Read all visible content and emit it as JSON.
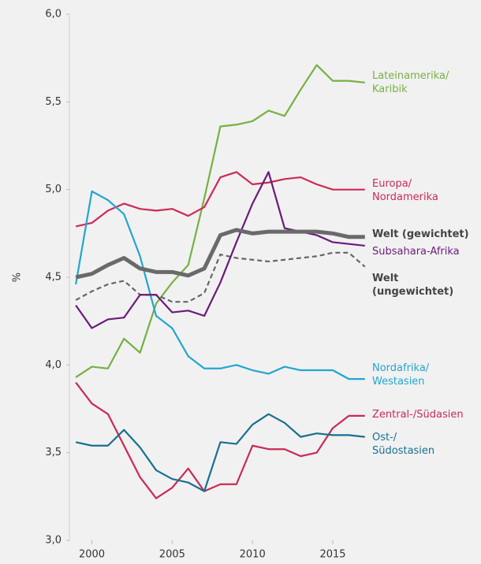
{
  "chart_data": {
    "type": "line",
    "y_label": "%",
    "x": [
      1999,
      2000,
      2001,
      2002,
      2003,
      2004,
      2005,
      2006,
      2007,
      2008,
      2009,
      2010,
      2011,
      2012,
      2013,
      2014,
      2015,
      2016,
      2017
    ],
    "xlim": [
      1998.6,
      2017.6
    ],
    "xticks": [
      2000,
      2005,
      2010,
      2015
    ],
    "ylim": [
      3.0,
      6.0
    ],
    "yticks": [
      {
        "value": 3.0,
        "label": "3,0"
      },
      {
        "value": 3.5,
        "label": "3,5"
      },
      {
        "value": 4.0,
        "label": "4,0"
      },
      {
        "value": 4.5,
        "label": "4,5"
      },
      {
        "value": 5.0,
        "label": "5,0"
      },
      {
        "value": 5.5,
        "label": "5,5"
      },
      {
        "value": 6.0,
        "label": "6,0"
      }
    ],
    "series": [
      {
        "name": "Lateinamerika/\nKaribik",
        "color": "#76b043",
        "values": [
          3.93,
          3.99,
          3.98,
          4.15,
          4.07,
          4.35,
          4.47,
          4.57,
          4.95,
          5.36,
          5.37,
          5.39,
          5.45,
          5.42,
          5.57,
          5.71,
          5.62,
          5.62,
          5.61
        ]
      },
      {
        "name": "Europa/\nNordamerika",
        "color": "#cc2a55",
        "values": [
          4.79,
          4.81,
          4.88,
          4.92,
          4.89,
          4.88,
          4.89,
          4.85,
          4.9,
          5.07,
          5.1,
          5.03,
          5.04,
          5.06,
          5.07,
          5.03,
          5.0,
          5.0,
          5.0
        ]
      },
      {
        "name": "Nordafrika/\nWestasien",
        "color": "#22a6cf",
        "values": [
          4.46,
          4.99,
          4.94,
          4.86,
          4.62,
          4.28,
          4.21,
          4.05,
          3.98,
          3.98,
          4.0,
          3.97,
          3.95,
          3.99,
          3.97,
          3.97,
          3.97,
          3.92,
          3.92
        ]
      },
      {
        "name": "Zentral-/Südasien",
        "color": "#c92a55",
        "values": [
          3.9,
          3.78,
          3.72,
          3.54,
          3.36,
          3.24,
          3.3,
          3.41,
          3.28,
          3.32,
          3.32,
          3.54,
          3.52,
          3.52,
          3.48,
          3.5,
          3.64,
          3.71,
          3.71
        ]
      },
      {
        "name": "Ost-/\nSüdostasien",
        "color": "#17708f",
        "values": [
          3.56,
          3.54,
          3.54,
          3.63,
          3.53,
          3.4,
          3.35,
          3.33,
          3.28,
          3.56,
          3.55,
          3.66,
          3.72,
          3.67,
          3.59,
          3.61,
          3.6,
          3.6,
          3.59
        ]
      },
      {
        "name": "Welt (ungewichtet)",
        "color": "#666666",
        "dashed": true,
        "values": [
          4.37,
          4.42,
          4.46,
          4.48,
          4.4,
          4.4,
          4.36,
          4.36,
          4.41,
          4.63,
          4.61,
          4.6,
          4.59,
          4.6,
          4.61,
          4.62,
          4.64,
          4.64,
          4.56
        ]
      },
      {
        "name": "Subsahara-Afrika",
        "color": "#6a1b7a",
        "values": [
          4.34,
          4.21,
          4.26,
          4.27,
          4.4,
          4.4,
          4.3,
          4.31,
          4.28,
          4.47,
          4.7,
          4.92,
          5.1,
          4.78,
          4.76,
          4.74,
          4.7,
          4.69,
          4.68
        ]
      },
      {
        "name": "Welt (gewichtet)",
        "color": "#6a6a6a",
        "bold": true,
        "values": [
          4.5,
          4.52,
          4.57,
          4.61,
          4.55,
          4.53,
          4.53,
          4.51,
          4.55,
          4.74,
          4.77,
          4.75,
          4.76,
          4.76,
          4.76,
          4.76,
          4.75,
          4.73,
          4.73
        ]
      }
    ]
  }
}
